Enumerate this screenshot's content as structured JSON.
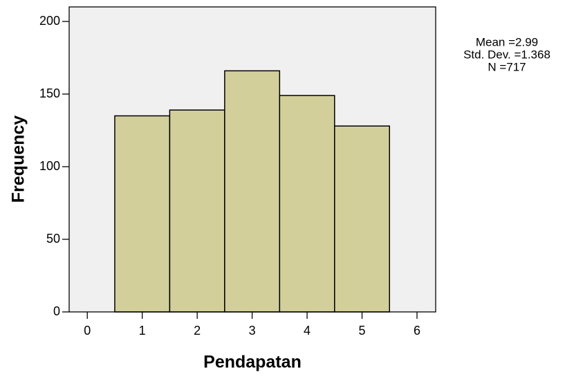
{
  "chart_data": {
    "type": "histogram",
    "x_label": "Pendapatan",
    "y_label": "Frequency",
    "bins": [
      0.5,
      1.5,
      2.5,
      3.5,
      4.5,
      5.5
    ],
    "counts": [
      135,
      139,
      166,
      149,
      128
    ],
    "color": "#d3cf9b",
    "xlim": [
      -0.33,
      6.34
    ],
    "xticks": [
      0,
      1,
      2,
      3,
      4,
      5,
      6
    ],
    "ylim": [
      0,
      210
    ],
    "yticks": [
      0,
      50,
      100,
      150,
      200
    ],
    "annotations": [
      "Mean =2.99",
      "Std. Dev. =1.368",
      "N =717"
    ]
  }
}
